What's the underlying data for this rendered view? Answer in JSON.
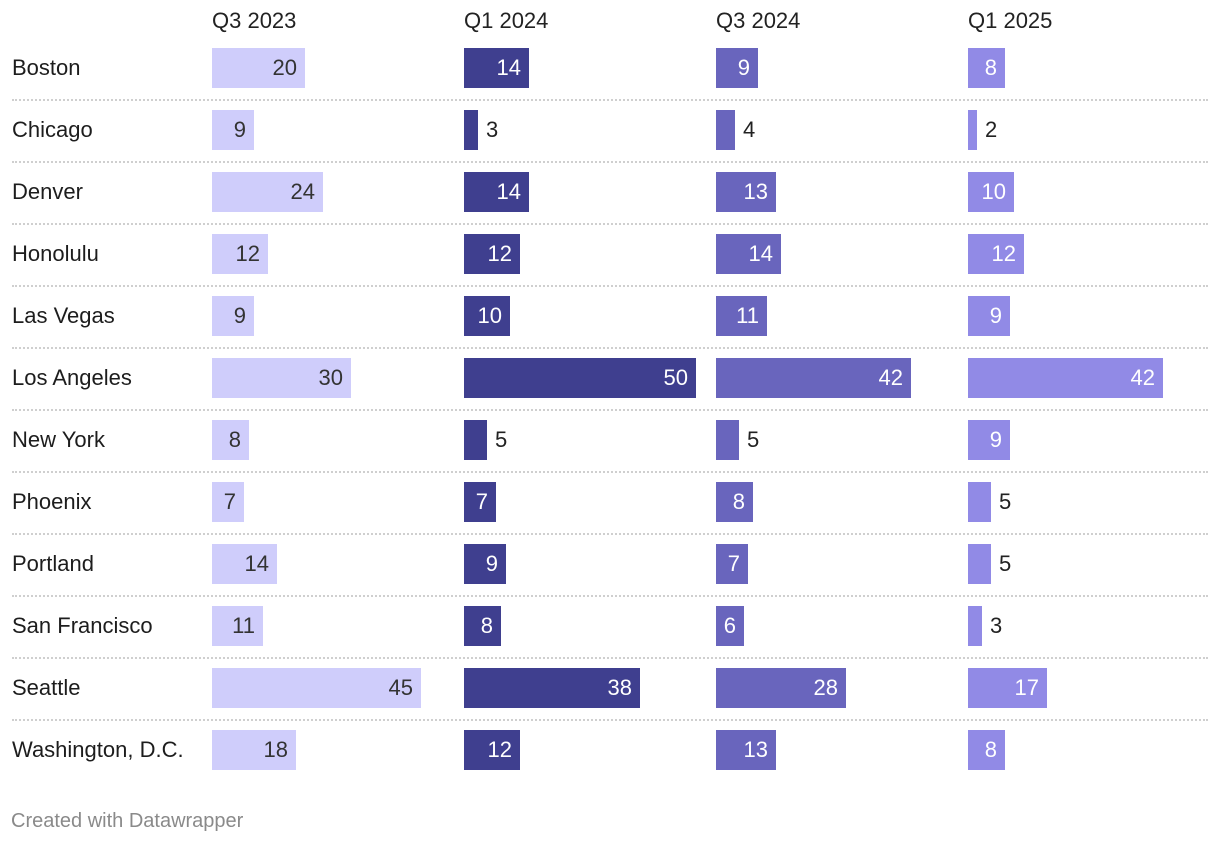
{
  "chart_data": {
    "type": "bar",
    "categories": [
      "Boston",
      "Chicago",
      "Denver",
      "Honolulu",
      "Las Vegas",
      "Los Angeles",
      "New York",
      "Phoenix",
      "Portland",
      "San Francisco",
      "Seattle",
      "Washington, D.C."
    ],
    "series": [
      {
        "name": "Q3 2023",
        "color": "#cfcdfb",
        "values": [
          20,
          9,
          24,
          12,
          9,
          30,
          8,
          7,
          14,
          11,
          45,
          18
        ]
      },
      {
        "name": "Q1 2024",
        "color": "#3f3f8f",
        "values": [
          14,
          3,
          14,
          12,
          10,
          50,
          5,
          7,
          9,
          8,
          38,
          12
        ]
      },
      {
        "name": "Q3 2024",
        "color": "#6965bd",
        "values": [
          9,
          4,
          13,
          14,
          11,
          42,
          5,
          8,
          7,
          6,
          28,
          13
        ]
      },
      {
        "name": "Q1 2025",
        "color": "#918ae6",
        "values": [
          8,
          2,
          10,
          12,
          9,
          42,
          9,
          5,
          5,
          3,
          17,
          8
        ]
      }
    ],
    "xlim": [
      0,
      50
    ],
    "grid": false,
    "legend": "none"
  },
  "footer": "Created with Datawrapper"
}
